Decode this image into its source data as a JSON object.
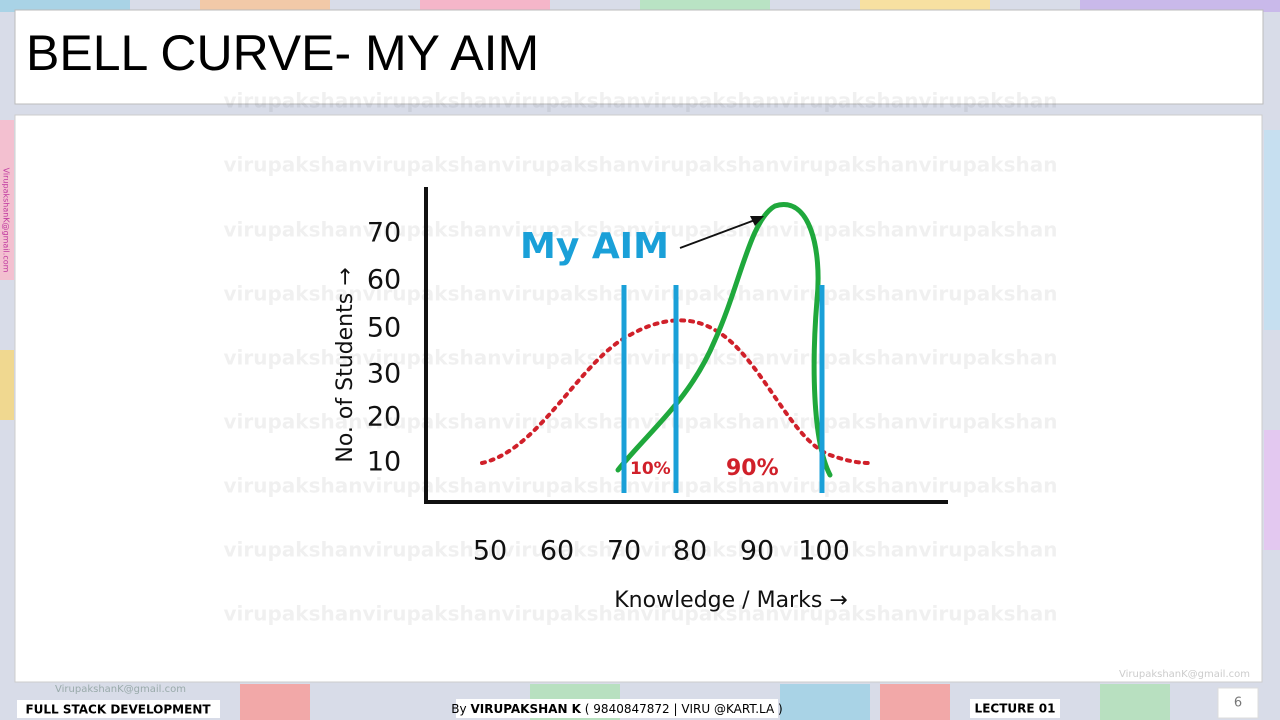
{
  "header": {
    "title": "BELL CURVE- MY AIM"
  },
  "chart": {
    "y_axis_label": "No. of Students →",
    "x_axis_label": "Knowledge / Marks →",
    "y_tick_labels": [
      70,
      60,
      50,
      30,
      20,
      10
    ],
    "x_tick_labels": [
      50,
      60,
      70,
      80,
      90,
      100
    ],
    "annotation": "My AIM",
    "left_percent": "10%",
    "right_percent": "90%"
  },
  "watermark": "virupakshan",
  "email": "VirupakshanK@gmail.com",
  "footer": {
    "course": "FULL STACK DEVELOPMENT",
    "by": "By",
    "author": "VIRUPAKSHAN K",
    "contact": "( 9840847872 | VIRU @KART.LA )",
    "lecture": "LECTURE 01",
    "page": 6
  }
}
